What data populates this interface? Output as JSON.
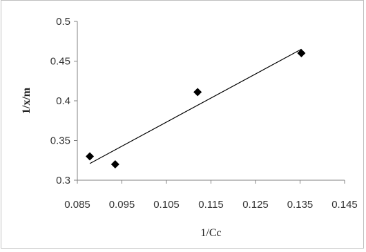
{
  "chart_data": {
    "type": "scatter",
    "title": "",
    "xlabel": "1/Cc",
    "ylabel": "1/x/m",
    "xlim": [
      0.085,
      0.145
    ],
    "ylim": [
      0.3,
      0.5
    ],
    "x_ticks": [
      0.085,
      0.095,
      0.105,
      0.115,
      0.125,
      0.135,
      0.145
    ],
    "x_tick_labels": [
      "0.085",
      "0.095",
      "0.105",
      "0.115",
      "0.125",
      "0.135",
      "0.145"
    ],
    "y_ticks": [
      0.3,
      0.35,
      0.4,
      0.45,
      0.5
    ],
    "y_tick_labels": [
      "0.3",
      "0.35",
      "0.4",
      "0.45",
      "0.5"
    ],
    "grid": false,
    "legend": "none",
    "marker": "diamond",
    "marker_color": "#000000",
    "series": [
      {
        "x": [
          0.0878,
          0.0935,
          0.112,
          0.1353
        ],
        "y": [
          0.33,
          0.32,
          0.411,
          0.46
        ]
      }
    ],
    "trendline": {
      "type": "linear",
      "x_start": 0.0878,
      "x_end": 0.1353,
      "y_start": 0.321,
      "y_end": 0.465
    }
  }
}
